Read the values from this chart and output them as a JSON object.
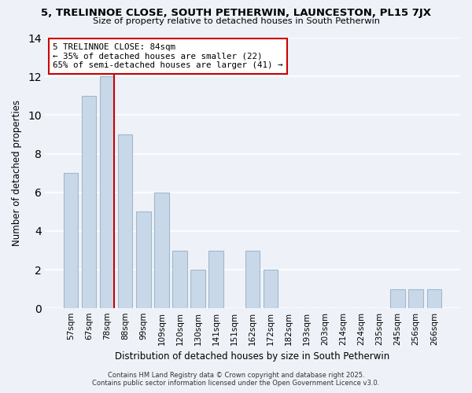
{
  "title": "5, TRELINNOE CLOSE, SOUTH PETHERWIN, LAUNCESTON, PL15 7JX",
  "subtitle": "Size of property relative to detached houses in South Petherwin",
  "xlabel": "Distribution of detached houses by size in South Petherwin",
  "ylabel": "Number of detached properties",
  "bar_color": "#c8d8e8",
  "bar_edge_color": "#a0b8cc",
  "background_color": "#eef2f8",
  "grid_color": "#ffffff",
  "categories": [
    "57sqm",
    "67sqm",
    "78sqm",
    "88sqm",
    "99sqm",
    "109sqm",
    "120sqm",
    "130sqm",
    "141sqm",
    "151sqm",
    "162sqm",
    "172sqm",
    "182sqm",
    "193sqm",
    "203sqm",
    "214sqm",
    "224sqm",
    "235sqm",
    "245sqm",
    "256sqm",
    "266sqm"
  ],
  "values": [
    7,
    11,
    12,
    9,
    5,
    6,
    3,
    2,
    3,
    0,
    3,
    2,
    0,
    0,
    0,
    0,
    0,
    0,
    1,
    1,
    1
  ],
  "ylim": [
    0,
    14
  ],
  "yticks": [
    0,
    2,
    4,
    6,
    8,
    10,
    12,
    14
  ],
  "property_line_index": 2,
  "annotation_title": "5 TRELINNOE CLOSE: 84sqm",
  "annotation_line1": "← 35% of detached houses are smaller (22)",
  "annotation_line2": "65% of semi-detached houses are larger (41) →",
  "annotation_box_color": "#ffffff",
  "annotation_box_edge_color": "#cc0000",
  "property_line_color": "#cc0000",
  "footer1": "Contains HM Land Registry data © Crown copyright and database right 2025.",
  "footer2": "Contains public sector information licensed under the Open Government Licence v3.0."
}
